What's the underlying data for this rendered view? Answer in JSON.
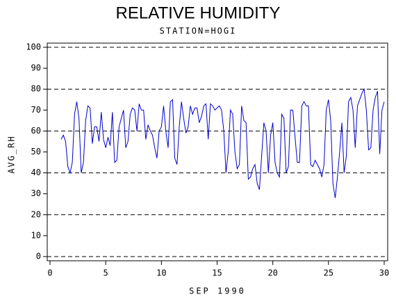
{
  "chart_data": {
    "type": "line",
    "title": "RELATIVE HUMIDITY",
    "subtitle": "STATION=HOGI",
    "ylabel": "AVG_RH",
    "xlabel": "SEP 1990",
    "xlim": [
      0,
      30
    ],
    "xticks": [
      0,
      5,
      10,
      15,
      20,
      25,
      30
    ],
    "ylim": [
      0,
      100
    ],
    "yticks": [
      0,
      10,
      20,
      30,
      40,
      50,
      60,
      70,
      80,
      90,
      100
    ],
    "grid_lines": [
      0,
      20,
      40,
      60,
      80,
      100
    ],
    "x": [
      1,
      1.2,
      1.4,
      1.6,
      1.8,
      2,
      2.2,
      2.4,
      2.6,
      2.8,
      3,
      3.2,
      3.4,
      3.6,
      3.8,
      4,
      4.2,
      4.4,
      4.6,
      4.8,
      5,
      5.2,
      5.4,
      5.6,
      5.8,
      6,
      6.2,
      6.4,
      6.6,
      6.8,
      7,
      7.2,
      7.4,
      7.6,
      7.8,
      8,
      8.2,
      8.4,
      8.6,
      8.8,
      9,
      9.2,
      9.4,
      9.6,
      9.8,
      10,
      10.2,
      10.4,
      10.6,
      10.8,
      11,
      11.2,
      11.4,
      11.6,
      11.8,
      12,
      12.2,
      12.4,
      12.6,
      12.8,
      13,
      13.2,
      13.4,
      13.6,
      13.8,
      14,
      14.2,
      14.4,
      14.6,
      14.8,
      15,
      15.2,
      15.4,
      15.6,
      15.8,
      16,
      16.2,
      16.4,
      16.6,
      16.8,
      17,
      17.2,
      17.4,
      17.6,
      17.8,
      18,
      18.2,
      18.4,
      18.6,
      18.8,
      19,
      19.2,
      19.4,
      19.6,
      19.8,
      20,
      20.2,
      20.4,
      20.6,
      20.8,
      21,
      21.2,
      21.4,
      21.6,
      21.8,
      22,
      22.2,
      22.4,
      22.6,
      22.8,
      23,
      23.2,
      23.4,
      23.6,
      23.8,
      24,
      24.2,
      24.4,
      24.6,
      24.8,
      25,
      25.2,
      25.4,
      25.6,
      25.8,
      26,
      26.2,
      26.4,
      26.6,
      26.8,
      27,
      27.2,
      27.4,
      27.6,
      27.8,
      28,
      28.2,
      28.4,
      28.6,
      28.8,
      29,
      29.2,
      29.4,
      29.6,
      29.8,
      30
    ],
    "series": [
      {
        "color": "#0000cc",
        "values": [
          56,
          58,
          55,
          43,
          40,
          45,
          68,
          74,
          66,
          40,
          45,
          65,
          72,
          71,
          54,
          62,
          62,
          55,
          69,
          56,
          52,
          57,
          53,
          69,
          45,
          46,
          62,
          66,
          70,
          52,
          55,
          68,
          71,
          70,
          60,
          73,
          70,
          70,
          56,
          63,
          60,
          58,
          52,
          47,
          60,
          62,
          72,
          60,
          52,
          74,
          75,
          47,
          44,
          62,
          74,
          66,
          59,
          62,
          72,
          68,
          71,
          71,
          64,
          67,
          72,
          73,
          56,
          73,
          72,
          70,
          71,
          72,
          70,
          60,
          40,
          50,
          70,
          68,
          50,
          42,
          44,
          72,
          65,
          64,
          37,
          38,
          42,
          44,
          35,
          32,
          48,
          64,
          60,
          40,
          58,
          64,
          45,
          40,
          38,
          68,
          66,
          40,
          43,
          70,
          70,
          57,
          45,
          45,
          72,
          74,
          72,
          72,
          44,
          43,
          46,
          44,
          42,
          38,
          44,
          70,
          75,
          65,
          35,
          28,
          38,
          50,
          64,
          40,
          48,
          74,
          76,
          70,
          52,
          72,
          75,
          78,
          80,
          70,
          51,
          52,
          70,
          76,
          79,
          49,
          70,
          74
        ]
      }
    ]
  }
}
